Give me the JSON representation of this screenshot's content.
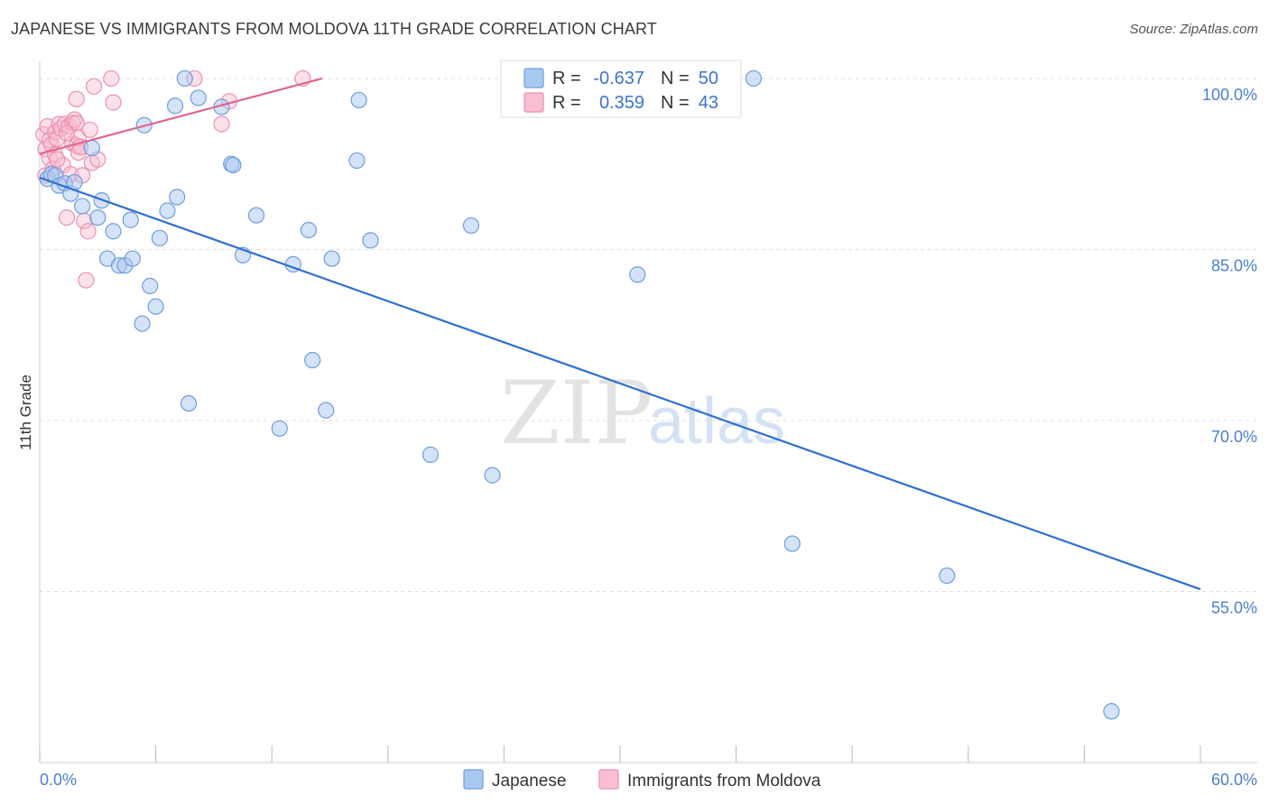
{
  "title": "JAPANESE VS IMMIGRANTS FROM MOLDOVA 11TH GRADE CORRELATION CHART",
  "source": "Source: ZipAtlas.com",
  "watermark": {
    "zip": "ZIP",
    "atlas": "atlas"
  },
  "colors": {
    "japanese_fill": "#a9c8f0",
    "japanese_stroke": "#6e9de0",
    "japanese_line": "#2f6fd1",
    "moldova_fill": "#f7bfd1",
    "moldova_stroke": "#ee8fb0",
    "moldova_line": "#e0658f",
    "grid": "#dddddd",
    "tick_label": "#4a7fd0"
  },
  "legend": {
    "rows": [
      {
        "r_label": "R =",
        "r_value": "-0.637",
        "n_label": "N =",
        "n_value": "50"
      },
      {
        "r_label": "R =",
        "r_value": "0.359",
        "n_label": "N =",
        "n_value": "43"
      }
    ]
  },
  "bottom_legend": {
    "items": [
      "Japanese",
      "Immigrants from Moldova"
    ]
  },
  "chart_data": {
    "type": "scatter",
    "title": "JAPANESE VS IMMIGRANTS FROM MOLDOVA 11TH GRADE CORRELATION CHART",
    "xlabel": "",
    "ylabel": "11th Grade",
    "xlim": [
      0,
      60
    ],
    "ylim": [
      40,
      101.5
    ],
    "x_tick_labels": [
      "0.0%",
      "60.0%"
    ],
    "y_ticks": [
      100,
      85,
      70,
      55
    ],
    "y_tick_labels": [
      "100.0%",
      "85.0%",
      "70.0%",
      "55.0%"
    ],
    "grid": true,
    "legend_position": "top-center",
    "series": [
      {
        "name": "Japanese",
        "r": -0.637,
        "n": 50,
        "trend": {
          "x": [
            0,
            60
          ],
          "y": [
            91.3,
            55.2
          ]
        },
        "points": [
          [
            0.4,
            91.2
          ],
          [
            0.6,
            91.6
          ],
          [
            0.8,
            91.5
          ],
          [
            1.0,
            90.6
          ],
          [
            1.3,
            90.8
          ],
          [
            1.6,
            89.9
          ],
          [
            1.8,
            90.9
          ],
          [
            2.2,
            88.8
          ],
          [
            2.7,
            93.9
          ],
          [
            3.0,
            87.8
          ],
          [
            3.2,
            89.3
          ],
          [
            3.5,
            84.2
          ],
          [
            3.8,
            86.6
          ],
          [
            4.1,
            83.6
          ],
          [
            4.4,
            83.6
          ],
          [
            4.7,
            87.6
          ],
          [
            4.8,
            84.2
          ],
          [
            5.3,
            78.5
          ],
          [
            5.4,
            95.9
          ],
          [
            5.7,
            81.8
          ],
          [
            6.0,
            80.0
          ],
          [
            6.6,
            88.4
          ],
          [
            7.0,
            97.6
          ],
          [
            7.1,
            89.6
          ],
          [
            7.5,
            100.0
          ],
          [
            7.7,
            71.5
          ],
          [
            8.2,
            98.3
          ],
          [
            9.4,
            97.5
          ],
          [
            9.9,
            92.5
          ],
          [
            10.0,
            92.4
          ],
          [
            10.5,
            84.5
          ],
          [
            11.2,
            88.0
          ],
          [
            12.4,
            69.3
          ],
          [
            13.1,
            83.7
          ],
          [
            13.9,
            86.7
          ],
          [
            14.1,
            75.3
          ],
          [
            14.8,
            70.9
          ],
          [
            15.1,
            84.2
          ],
          [
            16.4,
            92.8
          ],
          [
            16.5,
            98.1
          ],
          [
            17.1,
            85.8
          ],
          [
            20.2,
            67.0
          ],
          [
            22.3,
            87.1
          ],
          [
            23.4,
            65.2
          ],
          [
            30.9,
            82.8
          ],
          [
            36.9,
            100.0
          ],
          [
            38.9,
            59.2
          ],
          [
            46.9,
            56.4
          ],
          [
            55.4,
            44.5
          ],
          [
            6.2,
            86.0
          ]
        ]
      },
      {
        "name": "Immigrants from Moldova",
        "r": 0.359,
        "n": 43,
        "trend": {
          "x": [
            0,
            14.6
          ],
          "y": [
            93.4,
            100.0
          ]
        },
        "points": [
          [
            0.2,
            95.1
          ],
          [
            0.3,
            93.8
          ],
          [
            0.3,
            91.5
          ],
          [
            0.4,
            95.8
          ],
          [
            0.5,
            94.6
          ],
          [
            0.5,
            93.0
          ],
          [
            0.6,
            94.2
          ],
          [
            0.7,
            92.1
          ],
          [
            0.8,
            95.3
          ],
          [
            0.8,
            93.3
          ],
          [
            0.9,
            94.7
          ],
          [
            1.0,
            96.0
          ],
          [
            1.1,
            95.6
          ],
          [
            1.2,
            92.4
          ],
          [
            1.3,
            96.0
          ],
          [
            1.4,
            87.8
          ],
          [
            1.5,
            95.8
          ],
          [
            1.6,
            91.6
          ],
          [
            1.7,
            96.1
          ],
          [
            1.7,
            94.3
          ],
          [
            1.8,
            96.4
          ],
          [
            1.9,
            94.1
          ],
          [
            1.9,
            96.1
          ],
          [
            1.9,
            98.2
          ],
          [
            2.0,
            94.8
          ],
          [
            2.0,
            93.5
          ],
          [
            2.2,
            91.5
          ],
          [
            2.3,
            87.5
          ],
          [
            2.4,
            82.3
          ],
          [
            2.5,
            86.6
          ],
          [
            2.6,
            95.5
          ],
          [
            2.7,
            92.6
          ],
          [
            2.8,
            99.3
          ],
          [
            3.0,
            92.9
          ],
          [
            3.7,
            100.0
          ],
          [
            3.8,
            97.9
          ],
          [
            8.0,
            100.0
          ],
          [
            9.4,
            96.0
          ],
          [
            9.8,
            98.0
          ],
          [
            13.6,
            100.0
          ],
          [
            2.1,
            94.0
          ],
          [
            1.4,
            95.2
          ],
          [
            0.9,
            92.9
          ]
        ]
      }
    ]
  }
}
